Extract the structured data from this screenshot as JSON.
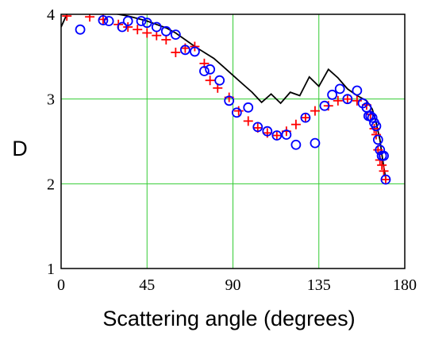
{
  "chart_data": {
    "type": "scatter",
    "title": "",
    "xlabel": "Scattering angle (degrees)",
    "ylabel": "D",
    "xlim": [
      0,
      180
    ],
    "ylim": [
      1,
      4
    ],
    "xticks": [
      "0",
      "45",
      "90",
      "135",
      "180"
    ],
    "yticks": [
      "1",
      "2",
      "3",
      "4"
    ],
    "grid": true,
    "grid_color": "#33cc33",
    "series": [
      {
        "style": "line",
        "color": "#000000",
        "x": [
          0,
          3,
          6,
          10,
          15,
          20,
          25,
          30,
          35,
          40,
          45,
          50,
          55,
          60,
          65,
          70,
          75,
          80,
          85,
          90,
          95,
          100,
          105,
          110,
          115,
          120,
          125,
          130,
          135,
          140,
          145,
          150,
          155,
          160,
          163,
          165,
          167,
          168,
          169,
          170
        ],
        "y": [
          3.85,
          4.0,
          4.05,
          4.05,
          4.04,
          4.03,
          4.02,
          4.0,
          3.98,
          3.95,
          3.92,
          3.88,
          3.84,
          3.78,
          3.7,
          3.62,
          3.55,
          3.48,
          3.38,
          3.28,
          3.18,
          3.08,
          2.96,
          3.06,
          2.95,
          3.08,
          3.04,
          3.26,
          3.15,
          3.35,
          3.25,
          3.12,
          3.04,
          2.98,
          2.88,
          2.72,
          2.52,
          2.35,
          2.2,
          2.07
        ]
      },
      {
        "style": "plus",
        "color": "#ff0000",
        "x": [
          3,
          15,
          22,
          30,
          35,
          40,
          45,
          50,
          55,
          60,
          65,
          70,
          75,
          78,
          82,
          88,
          93,
          98,
          103,
          108,
          113,
          118,
          123,
          128,
          133,
          140,
          145,
          150,
          155,
          160,
          162,
          164,
          165,
          166,
          167,
          168,
          169,
          170
        ],
        "y": [
          3.98,
          3.97,
          3.94,
          3.88,
          3.85,
          3.82,
          3.78,
          3.75,
          3.7,
          3.55,
          3.6,
          3.62,
          3.42,
          3.22,
          3.13,
          3.02,
          2.86,
          2.74,
          2.66,
          2.6,
          2.57,
          2.62,
          2.7,
          2.78,
          2.86,
          2.92,
          2.98,
          3.0,
          2.98,
          2.93,
          2.82,
          2.65,
          2.58,
          2.4,
          2.28,
          2.22,
          2.15,
          2.05
        ]
      },
      {
        "style": "circle",
        "color": "#0000ff",
        "x": [
          10,
          22,
          25,
          32,
          35,
          42,
          45,
          50,
          55,
          60,
          65,
          70,
          75,
          78,
          83,
          88,
          92,
          98,
          103,
          108,
          113,
          118,
          123,
          128,
          133,
          138,
          142,
          146,
          150,
          155,
          158,
          160,
          161,
          162,
          163,
          164,
          165,
          166,
          167,
          168,
          169,
          170
        ],
        "y": [
          3.82,
          3.93,
          3.92,
          3.85,
          3.92,
          3.92,
          3.9,
          3.85,
          3.8,
          3.76,
          3.58,
          3.56,
          3.33,
          3.35,
          3.22,
          2.98,
          2.84,
          2.9,
          2.67,
          2.62,
          2.57,
          2.58,
          2.46,
          2.78,
          2.48,
          2.92,
          3.05,
          3.12,
          3.0,
          3.1,
          2.95,
          2.9,
          2.8,
          2.8,
          2.78,
          2.72,
          2.68,
          2.52,
          2.4,
          2.33,
          2.33,
          2.05
        ]
      }
    ]
  }
}
